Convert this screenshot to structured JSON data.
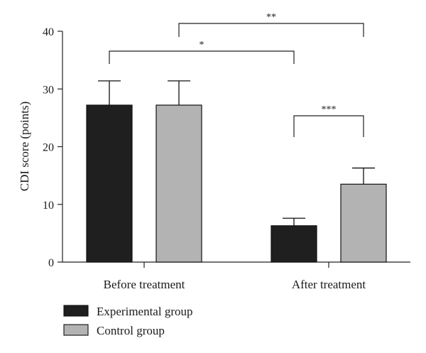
{
  "chart_data": {
    "type": "bar",
    "categories": [
      "Before treatment",
      "After treatment"
    ],
    "series": [
      {
        "name": "Experimental group",
        "color": "#1f1f1f",
        "values": [
          27.2,
          6.3
        ],
        "errors": [
          4.2,
          1.3
        ]
      },
      {
        "name": "Control group",
        "color": "#b3b3b3",
        "values": [
          27.2,
          13.5
        ],
        "errors": [
          4.2,
          2.8
        ]
      }
    ],
    "title": "",
    "xlabel": "",
    "ylabel": "CDI score (points)",
    "ylim": [
      0,
      40
    ],
    "yticks": [
      0,
      10,
      20,
      30,
      40
    ],
    "grid": false,
    "legend_position": "bottom-left",
    "significance": [
      {
        "label": "*",
        "from": "Before treatment / Experimental group",
        "to": "After treatment / Experimental group"
      },
      {
        "label": "**",
        "from": "Before treatment / Control group",
        "to": "After treatment / Control group"
      },
      {
        "label": "***",
        "from": "After treatment / Experimental group",
        "to": "After treatment / Control group"
      }
    ]
  }
}
